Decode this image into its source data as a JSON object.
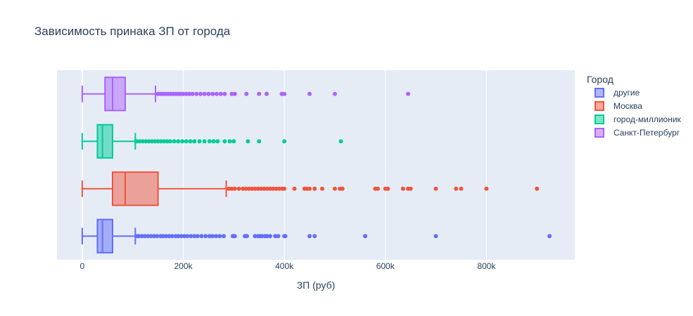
{
  "chart_data": {
    "type": "box",
    "orientation": "horizontal",
    "title": "Зависимость принака ЗП от города",
    "xlabel": "ЗП (руб)",
    "ylabel": "",
    "xlim": [
      -50000,
      975000
    ],
    "x_ticks": [
      {
        "value": 0,
        "label": "0"
      },
      {
        "value": 200000,
        "label": "200k"
      },
      {
        "value": 400000,
        "label": "400k"
      },
      {
        "value": 600000,
        "label": "600k"
      },
      {
        "value": 800000,
        "label": "800k"
      }
    ],
    "grid": true,
    "legend": {
      "title": "Город",
      "placement": "right"
    },
    "series": [
      {
        "name": "другие",
        "color": "#636efa",
        "min": 0,
        "q1": 30000,
        "median": 40000,
        "q3": 60000,
        "max": 105000,
        "outliers": [
          108000,
          112000,
          118000,
          124000,
          130000,
          136000,
          142000,
          148000,
          155000,
          160000,
          166000,
          172000,
          178000,
          185000,
          190000,
          196000,
          202000,
          208000,
          215000,
          222000,
          228000,
          236000,
          244000,
          252000,
          258000,
          265000,
          272000,
          280000,
          298000,
          302000,
          322000,
          326000,
          342000,
          348000,
          352000,
          356000,
          362000,
          366000,
          372000,
          382000,
          388000,
          400000,
          402000,
          450000,
          460000,
          560000,
          700000,
          925000
        ]
      },
      {
        "name": "Москва",
        "color": "#ef553b",
        "min": 0,
        "q1": 60000,
        "median": 85000,
        "q3": 150000,
        "max": 285000,
        "outliers": [
          290000,
          296000,
          302000,
          310000,
          318000,
          324000,
          330000,
          336000,
          342000,
          348000,
          354000,
          360000,
          366000,
          372000,
          378000,
          384000,
          390000,
          396000,
          400000,
          420000,
          440000,
          445000,
          450000,
          460000,
          475000,
          500000,
          510000,
          515000,
          580000,
          585000,
          600000,
          605000,
          635000,
          645000,
          650000,
          700000,
          740000,
          750000,
          800000,
          900000
        ]
      },
      {
        "name": "город-миллионик",
        "color": "#00cc96",
        "min": 0,
        "q1": 30000,
        "median": 40000,
        "q3": 60000,
        "max": 105000,
        "outliers": [
          108000,
          114000,
          120000,
          126000,
          132000,
          138000,
          144000,
          150000,
          156000,
          162000,
          168000,
          174000,
          182000,
          190000,
          198000,
          206000,
          214000,
          222000,
          232000,
          242000,
          252000,
          260000,
          268000,
          282000,
          292000,
          300000,
          328000,
          350000,
          400000,
          512000
        ]
      },
      {
        "name": "Санкт-Петербург",
        "color": "#ab63fa",
        "min": 0,
        "q1": 45000,
        "median": 60000,
        "q3": 85000,
        "max": 145000,
        "outliers": [
          150000,
          155000,
          160000,
          165000,
          170000,
          175000,
          180000,
          185000,
          190000,
          195000,
          200000,
          206000,
          212000,
          218000,
          226000,
          234000,
          242000,
          250000,
          258000,
          266000,
          274000,
          282000,
          296000,
          302000,
          325000,
          350000,
          365000,
          395000,
          400000,
          450000,
          500000,
          645000
        ]
      }
    ]
  }
}
